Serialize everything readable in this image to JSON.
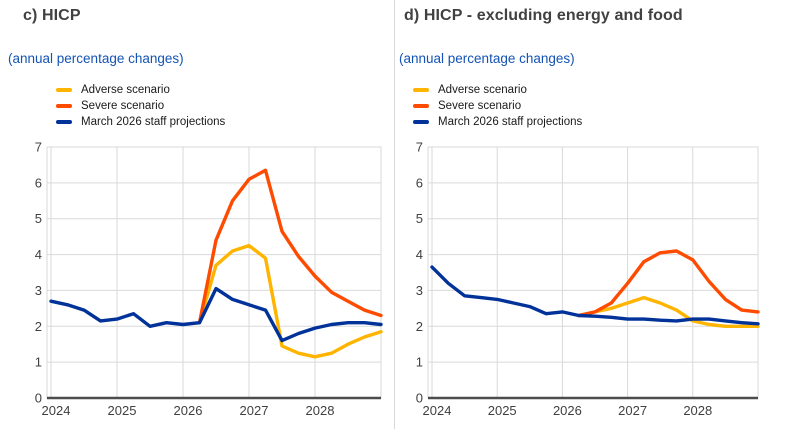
{
  "colors": {
    "title_text": "#414141",
    "subtitle_text": "#1353b5",
    "axis_text": "#404040",
    "gridline": "#d9d9d9",
    "axis_line": "#4d4d4d",
    "legend_text": "#1a1a1a",
    "adverse": "#FFB400",
    "severe": "#FF4B00",
    "projections": "#003299"
  },
  "chart_data": [
    {
      "type": "line",
      "title": "c) HICP",
      "subtitle": "(annual percentage changes)",
      "frequency": "quarterly",
      "grid": true,
      "legend_position": "top-left",
      "ylim": [
        0,
        7
      ],
      "yticks": [
        0,
        1,
        2,
        3,
        4,
        5,
        6,
        7
      ],
      "xticks": [
        2024,
        2025,
        2026,
        2027,
        2028
      ],
      "x": [
        2024,
        2024.25,
        2024.5,
        2024.75,
        2025,
        2025.25,
        2025.5,
        2025.75,
        2026,
        2026.25,
        2026.5,
        2026.75,
        2027,
        2027.25,
        2027.5,
        2027.75,
        2028,
        2028.25,
        2028.5,
        2028.75,
        2029
      ],
      "series": [
        {
          "name": "Adverse scenario",
          "color": "#FFB400",
          "values": [
            null,
            null,
            null,
            null,
            null,
            null,
            null,
            null,
            null,
            2.1,
            3.7,
            4.1,
            4.25,
            3.9,
            1.45,
            1.25,
            1.15,
            1.25,
            1.5,
            1.7,
            1.85
          ]
        },
        {
          "name": "Severe scenario",
          "color": "#FF4B00",
          "values": [
            null,
            null,
            null,
            null,
            null,
            null,
            null,
            null,
            null,
            2.1,
            4.4,
            5.5,
            6.1,
            6.35,
            4.65,
            3.95,
            3.4,
            2.95,
            2.7,
            2.45,
            2.3
          ]
        },
        {
          "name": "March 2026 staff projections",
          "color": "#003299",
          "values": [
            2.7,
            2.6,
            2.45,
            2.15,
            2.2,
            2.35,
            2.0,
            2.1,
            2.05,
            2.1,
            3.05,
            2.75,
            2.6,
            2.45,
            1.6,
            1.8,
            1.95,
            2.05,
            2.1,
            2.1,
            2.05
          ]
        }
      ]
    },
    {
      "type": "line",
      "title": "d) HICP - excluding energy and food",
      "subtitle": "(annual percentage changes)",
      "frequency": "quarterly",
      "grid": true,
      "legend_position": "top-left",
      "ylim": [
        0,
        7
      ],
      "yticks": [
        0,
        1,
        2,
        3,
        4,
        5,
        6,
        7
      ],
      "xticks": [
        2024,
        2025,
        2026,
        2027,
        2028
      ],
      "x": [
        2024,
        2024.25,
        2024.5,
        2024.75,
        2025,
        2025.25,
        2025.5,
        2025.75,
        2026,
        2026.25,
        2026.5,
        2026.75,
        2027,
        2027.25,
        2027.5,
        2027.75,
        2028,
        2028.25,
        2028.5,
        2028.75,
        2029
      ],
      "series": [
        {
          "name": "Adverse scenario",
          "color": "#FFB400",
          "values": [
            null,
            null,
            null,
            null,
            null,
            null,
            null,
            null,
            null,
            2.3,
            2.4,
            2.5,
            2.65,
            2.8,
            2.65,
            2.45,
            2.15,
            2.05,
            2.0,
            2.0,
            2.0
          ]
        },
        {
          "name": "Severe scenario",
          "color": "#FF4B00",
          "values": [
            null,
            null,
            null,
            null,
            null,
            null,
            null,
            null,
            null,
            2.3,
            2.4,
            2.65,
            3.2,
            3.8,
            4.05,
            4.1,
            3.85,
            3.25,
            2.75,
            2.45,
            2.4
          ]
        },
        {
          "name": "March 2026 staff projections",
          "color": "#003299",
          "values": [
            3.65,
            3.2,
            2.85,
            2.8,
            2.75,
            2.65,
            2.55,
            2.35,
            2.4,
            2.3,
            2.28,
            2.25,
            2.2,
            2.2,
            2.17,
            2.15,
            2.2,
            2.2,
            2.15,
            2.1,
            2.07
          ]
        }
      ]
    }
  ]
}
